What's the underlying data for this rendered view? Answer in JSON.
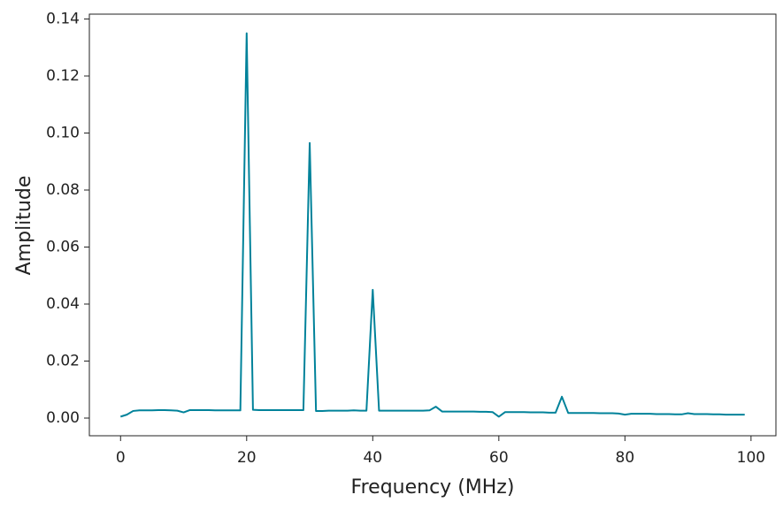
{
  "chart_data": {
    "type": "line",
    "x_label": "Frequency (MHz)",
    "y_label": "Amplitude",
    "x": [
      0,
      1,
      2,
      3,
      4,
      5,
      6,
      7,
      8,
      9,
      10,
      11,
      12,
      13,
      14,
      15,
      16,
      17,
      18,
      19,
      20,
      21,
      22,
      23,
      24,
      25,
      26,
      27,
      28,
      29,
      30,
      31,
      32,
      33,
      34,
      35,
      36,
      37,
      38,
      39,
      40,
      41,
      42,
      43,
      44,
      45,
      46,
      47,
      48,
      49,
      50,
      51,
      52,
      53,
      54,
      55,
      56,
      57,
      58,
      59,
      60,
      61,
      62,
      63,
      64,
      65,
      66,
      67,
      68,
      69,
      70,
      71,
      72,
      73,
      74,
      75,
      76,
      77,
      78,
      79,
      80,
      81,
      82,
      83,
      84,
      85,
      86,
      87,
      88,
      89,
      90,
      91,
      92,
      93,
      94,
      95,
      96,
      97,
      98,
      99
    ],
    "values": [
      0.0005,
      0.0012,
      0.0025,
      0.0027,
      0.0027,
      0.0027,
      0.0028,
      0.0028,
      0.0027,
      0.0026,
      0.002,
      0.0028,
      0.0028,
      0.0028,
      0.0028,
      0.0027,
      0.0027,
      0.0027,
      0.0027,
      0.0027,
      0.135,
      0.0029,
      0.0028,
      0.0028,
      0.0028,
      0.0028,
      0.0028,
      0.0028,
      0.0028,
      0.0028,
      0.0965,
      0.0025,
      0.0025,
      0.0026,
      0.0026,
      0.0026,
      0.0026,
      0.0027,
      0.0026,
      0.0026,
      0.045,
      0.0026,
      0.0026,
      0.0026,
      0.0026,
      0.0026,
      0.0026,
      0.0026,
      0.0026,
      0.0027,
      0.004,
      0.0023,
      0.0023,
      0.0023,
      0.0023,
      0.0023,
      0.0023,
      0.0022,
      0.0022,
      0.0021,
      0.0005,
      0.0021,
      0.0021,
      0.0021,
      0.0021,
      0.002,
      0.002,
      0.002,
      0.0019,
      0.0019,
      0.0075,
      0.0018,
      0.0018,
      0.0018,
      0.0018,
      0.0018,
      0.0017,
      0.0017,
      0.0017,
      0.0016,
      0.0012,
      0.0015,
      0.0015,
      0.0015,
      0.0015,
      0.0014,
      0.0014,
      0.0014,
      0.0013,
      0.0013,
      0.0017,
      0.0014,
      0.0014,
      0.0014,
      0.0013,
      0.0013,
      0.0012,
      0.0012,
      0.0012,
      0.0012
    ],
    "color": "#00829a",
    "xlim": [
      -4.95,
      103.95
    ],
    "xticks": [
      0,
      20,
      40,
      60,
      80,
      100
    ],
    "ylim": [
      -0.0062,
      0.1417
    ],
    "yticks": [
      {
        "value": 0,
        "label": "0.00"
      },
      {
        "value": 0.02,
        "label": "0.02"
      },
      {
        "value": 0.04,
        "label": "0.04"
      },
      {
        "value": 0.06,
        "label": "0.06"
      },
      {
        "value": 0.08,
        "label": "0.08"
      },
      {
        "value": 0.1,
        "label": "0.10"
      },
      {
        "value": 0.12,
        "label": "0.12"
      },
      {
        "value": 0.14,
        "label": "0.14"
      }
    ],
    "grid": false
  }
}
